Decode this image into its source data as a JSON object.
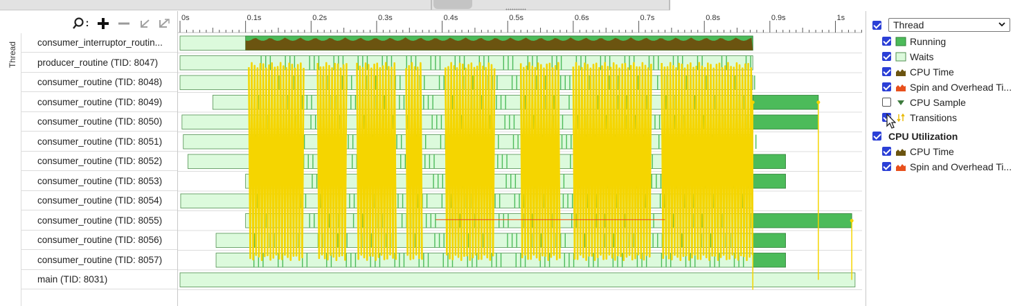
{
  "toolbar": {
    "vertical_label": "Thread",
    "icons": [
      "search-icon",
      "zoom-in-icon",
      "zoom-out-icon",
      "undo-zoom-icon",
      "reset-zoom-icon"
    ],
    "colon": ":"
  },
  "ruler": {
    "ticks": [
      "0s",
      "0.1s",
      "0.2s",
      "0.3s",
      "0.4s",
      "0.5s",
      "0.6s",
      "0.7s",
      "0.8s",
      "0.9s",
      "1s"
    ],
    "max_seconds": 1.04
  },
  "threads": [
    "consumer_interruptor_routin...",
    "producer_routine (TID: 8047)",
    "consumer_routine (TID: 8048)",
    "consumer_routine (TID: 8049)",
    "consumer_routine (TID: 8050)",
    "consumer_routine (TID: 8051)",
    "consumer_routine (TID: 8052)",
    "consumer_routine (TID: 8053)",
    "consumer_routine (TID: 8054)",
    "consumer_routine (TID: 8055)",
    "consumer_routine (TID: 8056)",
    "consumer_routine (TID: 8057)",
    "main (TID: 8031)"
  ],
  "legend": {
    "group_select": "Thread",
    "items": [
      {
        "label": "Running",
        "checked": true,
        "icon": "running-swatch"
      },
      {
        "label": "Waits",
        "checked": true,
        "icon": "waits-swatch"
      },
      {
        "label": "CPU Time",
        "checked": true,
        "icon": "cpu-time-icon"
      },
      {
        "label": "Spin and Overhead Ti...",
        "checked": true,
        "icon": "spin-overhead-icon"
      },
      {
        "label": "CPU Sample",
        "checked": false,
        "icon": "cpu-sample-icon"
      },
      {
        "label": "Transitions",
        "checked": true,
        "icon": "transitions-icon"
      }
    ],
    "section2": {
      "title": "CPU Utilization",
      "checked": true,
      "items": [
        {
          "label": "CPU Time",
          "checked": true,
          "icon": "cpu-time-icon"
        },
        {
          "label": "Spin and Overhead Ti...",
          "checked": true,
          "icon": "spin-overhead-icon"
        }
      ]
    }
  },
  "colors": {
    "running": "#4cbb5a",
    "waits": "#dcfadc",
    "cpu_time": "#6b5410",
    "spin": "#e8501c",
    "transitions": "#f5d500",
    "checkbox": "#2b3fd6"
  }
}
